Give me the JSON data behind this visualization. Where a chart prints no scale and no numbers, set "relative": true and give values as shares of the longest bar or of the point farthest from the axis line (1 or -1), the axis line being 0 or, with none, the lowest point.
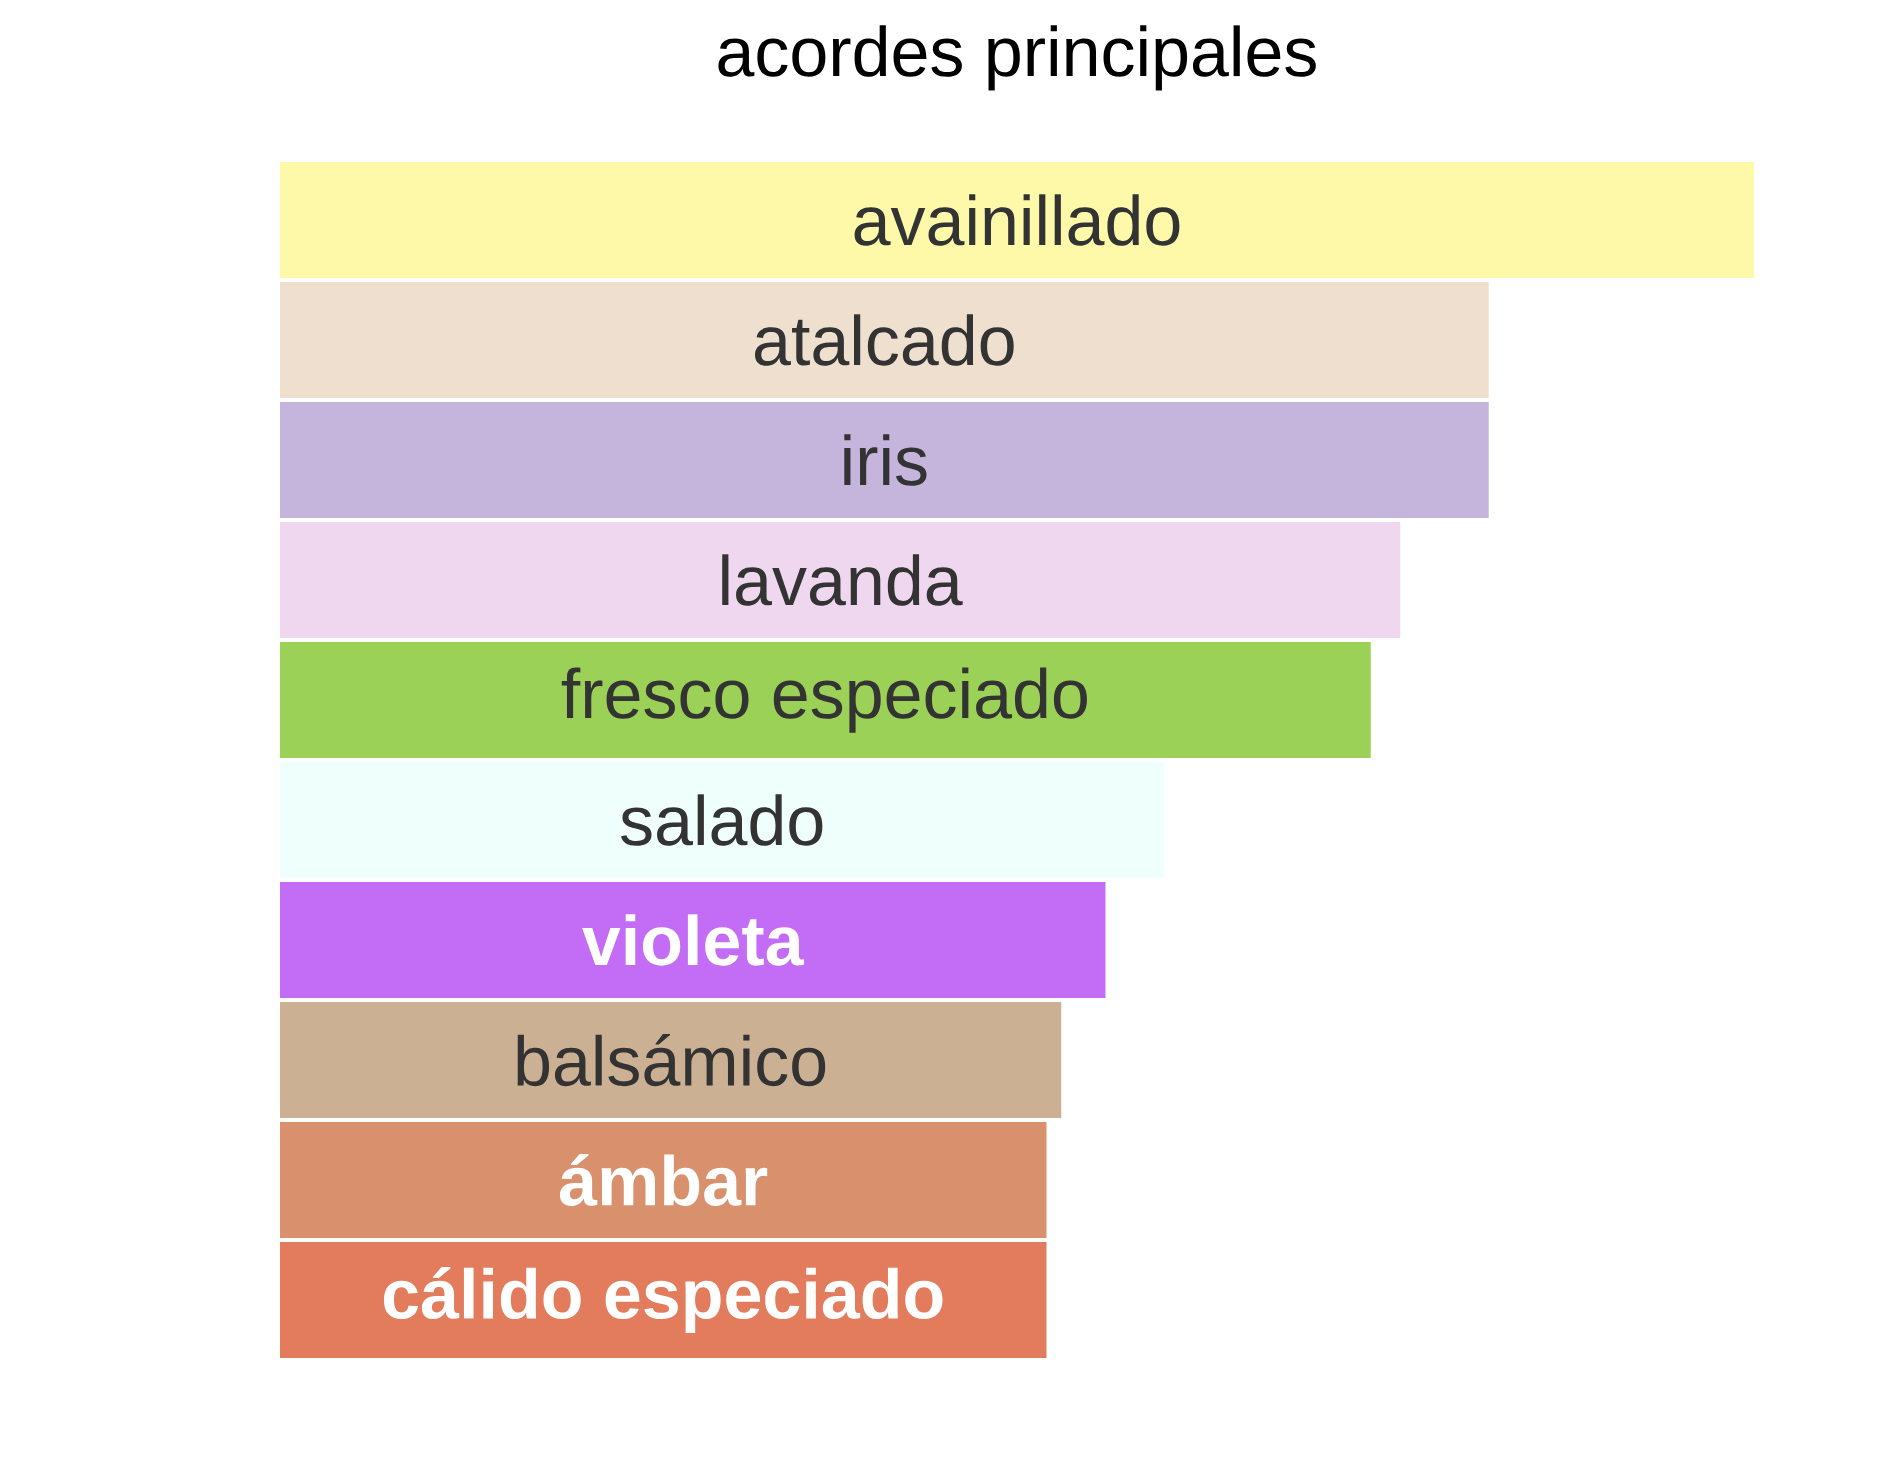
{
  "chart_data": {
    "type": "bar",
    "orientation": "horizontal",
    "relative": true,
    "title": "acordes principales",
    "categories": [
      "avainillado",
      "atalcado",
      "iris",
      "lavanda",
      "fresco especiado",
      "salado",
      "violeta",
      "balsámico",
      "ámbar",
      "cálido especiado"
    ],
    "values": [
      1,
      0.82,
      0.82,
      0.76,
      0.74,
      0.6,
      0.56,
      0.53,
      0.52,
      0.52
    ],
    "colors": [
      "#fdf9a9",
      "#efdfcf",
      "#c5b4dc",
      "#eed7ef",
      "#9bd156",
      "#effffc",
      "#c36cf6",
      "#ccb093",
      "#d8906d",
      "#e27c5d"
    ]
  }
}
